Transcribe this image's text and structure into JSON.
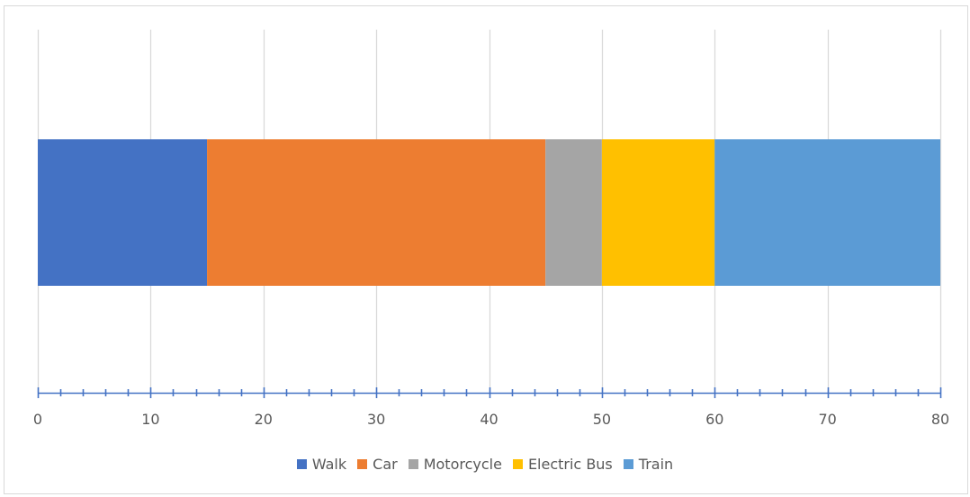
{
  "chart_data": {
    "type": "bar",
    "orientation": "horizontal",
    "stacked": true,
    "title": "",
    "xlabel": "",
    "ylabel": "",
    "xlim": [
      0,
      80
    ],
    "major_tick_step": 10,
    "minor_tick_step": 2,
    "tick_labels": [
      "0",
      "10",
      "20",
      "30",
      "40",
      "50",
      "60",
      "70",
      "80"
    ],
    "grid": "vertical major gridlines",
    "legend_position": "bottom",
    "categories": [
      ""
    ],
    "series": [
      {
        "name": "Walk",
        "values": [
          15
        ],
        "color": "#4472C4"
      },
      {
        "name": "Car",
        "values": [
          30
        ],
        "color": "#ED7D31"
      },
      {
        "name": "Motorcycle",
        "values": [
          5
        ],
        "color": "#A5A5A5"
      },
      {
        "name": "Electric Bus",
        "values": [
          10
        ],
        "color": "#FFC000"
      },
      {
        "name": "Train",
        "values": [
          20
        ],
        "color": "#5B9BD5"
      }
    ],
    "axis_color": "#4472C4",
    "gridline_color": "#d9d9d9"
  }
}
